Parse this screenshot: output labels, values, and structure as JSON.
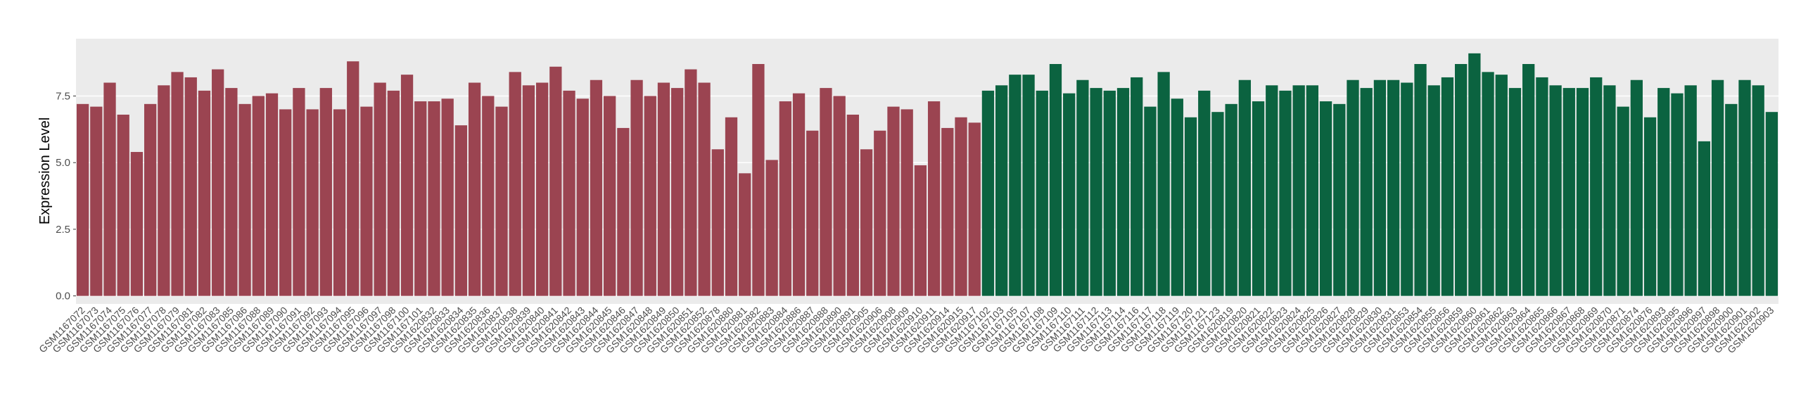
{
  "chart_data": {
    "type": "bar",
    "y_label": "Expression Level",
    "categories": [
      "GSM1167072",
      "GSM1167073",
      "GSM1167074",
      "GSM1167075",
      "GSM1167076",
      "GSM1167077",
      "GSM1167078",
      "GSM1167079",
      "GSM1167081",
      "GSM1167082",
      "GSM1167083",
      "GSM1167085",
      "GSM1167086",
      "GSM1167088",
      "GSM1167089",
      "GSM1167090",
      "GSM1167091",
      "GSM1167092",
      "GSM1167093",
      "GSM1167094",
      "GSM1167095",
      "GSM1167096",
      "GSM1167097",
      "GSM1167098",
      "GSM1167100",
      "GSM1167101",
      "GSM1620832",
      "GSM1620833",
      "GSM1620834",
      "GSM1620835",
      "GSM1620836",
      "GSM1620837",
      "GSM1620838",
      "GSM1620839",
      "GSM1620840",
      "GSM1620841",
      "GSM1620842",
      "GSM1620843",
      "GSM1620844",
      "GSM1620845",
      "GSM1620846",
      "GSM1620847",
      "GSM1620848",
      "GSM1620849",
      "GSM1620850",
      "GSM1620851",
      "GSM1620852",
      "GSM1620878",
      "GSM1620880",
      "GSM1620881",
      "GSM1620882",
      "GSM1620883",
      "GSM1620884",
      "GSM1620886",
      "GSM1620887",
      "GSM1620888",
      "GSM1620890",
      "GSM1620891",
      "GSM1620905",
      "GSM1620906",
      "GSM1620908",
      "GSM1620909",
      "GSM1620910",
      "GSM1620911",
      "GSM1620914",
      "GSM1620915",
      "GSM1620917",
      "GSM1167102",
      "GSM1167103",
      "GSM1167105",
      "GSM1167107",
      "GSM1167108",
      "GSM1167109",
      "GSM1167110",
      "GSM1167111",
      "GSM1167112",
      "GSM1167113",
      "GSM1167114",
      "GSM1167116",
      "GSM1167117",
      "GSM1167118",
      "GSM1167119",
      "GSM1167120",
      "GSM1167121",
      "GSM1167123",
      "GSM1620819",
      "GSM1620820",
      "GSM1620821",
      "GSM1620822",
      "GSM1620823",
      "GSM1620824",
      "GSM1620825",
      "GSM1620826",
      "GSM1620827",
      "GSM1620828",
      "GSM1620829",
      "GSM1620830",
      "GSM1620831",
      "GSM1620853",
      "GSM1620854",
      "GSM1620855",
      "GSM1620856",
      "GSM1620859",
      "GSM1620860",
      "GSM1620861",
      "GSM1620862",
      "GSM1620863",
      "GSM1620864",
      "GSM1620865",
      "GSM1620866",
      "GSM1620867",
      "GSM1620868",
      "GSM1620869",
      "GSM1620870",
      "GSM1620871",
      "GSM1620874",
      "GSM1620876",
      "GSM1620893",
      "GSM1620895",
      "GSM1620896",
      "GSM1620897",
      "GSM1620898",
      "GSM1620900",
      "GSM1620901",
      "GSM1620902",
      "GSM1620903"
    ],
    "values": [
      7.2,
      7.1,
      8.0,
      6.8,
      5.4,
      7.2,
      7.9,
      8.4,
      8.2,
      7.7,
      8.5,
      7.8,
      7.2,
      7.5,
      7.6,
      7.0,
      7.8,
      7.0,
      7.8,
      7.0,
      8.8,
      7.1,
      8.0,
      7.7,
      8.3,
      7.3,
      7.3,
      7.4,
      6.4,
      8.0,
      7.5,
      7.1,
      8.4,
      7.9,
      8.0,
      8.6,
      7.7,
      7.4,
      8.1,
      7.5,
      6.3,
      8.1,
      7.5,
      8.0,
      7.8,
      8.5,
      8.0,
      5.5,
      6.7,
      4.6,
      8.7,
      5.1,
      7.3,
      7.6,
      6.2,
      7.8,
      7.5,
      6.8,
      5.5,
      6.2,
      7.1,
      7.0,
      4.9,
      7.3,
      6.3,
      6.7,
      6.5,
      7.7,
      7.9,
      8.3,
      8.3,
      7.7,
      8.7,
      7.6,
      8.1,
      7.8,
      7.7,
      7.8,
      8.2,
      7.1,
      8.4,
      7.4,
      6.7,
      7.7,
      6.9,
      7.2,
      8.1,
      7.3,
      7.9,
      7.7,
      7.9,
      7.9,
      7.3,
      7.2,
      8.1,
      7.8,
      8.1,
      8.1,
      8.0,
      8.7,
      7.9,
      8.2,
      8.7,
      9.1,
      8.4,
      8.3,
      7.8,
      8.7,
      8.2,
      7.9,
      7.8,
      7.8,
      8.2,
      7.9,
      7.1,
      8.1,
      6.7,
      7.8,
      7.6,
      7.9,
      5.8,
      8.1,
      7.2,
      8.1,
      7.9,
      6.9
    ],
    "bar_colors": [
      "#9b4451",
      "#9b4451",
      "#9b4451",
      "#9b4451",
      "#9b4451",
      "#9b4451",
      "#9b4451",
      "#9b4451",
      "#9b4451",
      "#9b4451",
      "#9b4451",
      "#9b4451",
      "#9b4451",
      "#9b4451",
      "#9b4451",
      "#9b4451",
      "#9b4451",
      "#9b4451",
      "#9b4451",
      "#9b4451",
      "#9b4451",
      "#9b4451",
      "#9b4451",
      "#9b4451",
      "#9b4451",
      "#9b4451",
      "#9b4451",
      "#9b4451",
      "#9b4451",
      "#9b4451",
      "#9b4451",
      "#9b4451",
      "#9b4451",
      "#9b4451",
      "#9b4451",
      "#9b4451",
      "#9b4451",
      "#9b4451",
      "#9b4451",
      "#9b4451",
      "#9b4451",
      "#9b4451",
      "#9b4451",
      "#9b4451",
      "#9b4451",
      "#9b4451",
      "#9b4451",
      "#9b4451",
      "#9b4451",
      "#9b4451",
      "#9b4451",
      "#9b4451",
      "#9b4451",
      "#9b4451",
      "#9b4451",
      "#9b4451",
      "#9b4451",
      "#9b4451",
      "#9b4451",
      "#9b4451",
      "#9b4451",
      "#9b4451",
      "#9b4451",
      "#9b4451",
      "#9b4451",
      "#9b4451",
      "#9b4451",
      "#0b6340",
      "#0b6340",
      "#0b6340",
      "#0b6340",
      "#0b6340",
      "#0b6340",
      "#0b6340",
      "#0b6340",
      "#0b6340",
      "#0b6340",
      "#0b6340",
      "#0b6340",
      "#0b6340",
      "#0b6340",
      "#0b6340",
      "#0b6340",
      "#0b6340",
      "#0b6340",
      "#0b6340",
      "#0b6340",
      "#0b6340",
      "#0b6340",
      "#0b6340",
      "#0b6340",
      "#0b6340",
      "#0b6340",
      "#0b6340",
      "#0b6340",
      "#0b6340",
      "#0b6340",
      "#0b6340",
      "#0b6340",
      "#0b6340",
      "#0b6340",
      "#0b6340",
      "#0b6340",
      "#0b6340",
      "#0b6340",
      "#0b6340",
      "#0b6340",
      "#0b6340",
      "#0b6340",
      "#0b6340",
      "#0b6340",
      "#0b6340",
      "#0b6340",
      "#0b6340",
      "#0b6340",
      "#0b6340",
      "#0b6340",
      "#0b6340",
      "#0b6340",
      "#0b6340",
      "#0b6340",
      "#0b6340",
      "#0b6340",
      "#0b6340",
      "#0b6340",
      "#0b6340"
    ],
    "ylim": [
      -0.3,
      9.65
    ],
    "yticks": [
      {
        "value": 0,
        "label": "0.0"
      },
      {
        "value": 2.5,
        "label": "2.5"
      },
      {
        "value": 5,
        "label": "5.0"
      },
      {
        "value": 7.5,
        "label": "7.5"
      }
    ],
    "grid": true
  }
}
